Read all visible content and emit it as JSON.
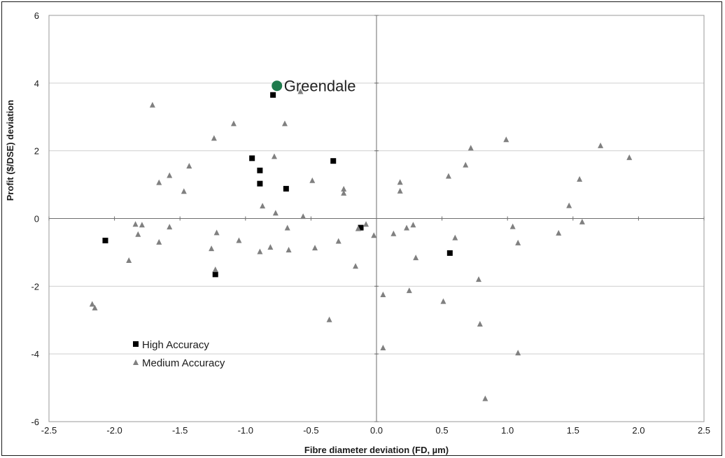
{
  "chart_data": {
    "type": "scatter",
    "title": "",
    "xlabel": "Fibre diameter deviation (FD, µm)",
    "ylabel": "Profit ($/DSE) deviation",
    "xlim": [
      -2.5,
      2.5
    ],
    "ylim": [
      -6,
      6
    ],
    "x_ticks": [
      -2.5,
      -2.0,
      -1.5,
      -1.0,
      -0.5,
      0.0,
      0.5,
      1.0,
      1.5,
      2.0,
      2.5
    ],
    "x_tick_labels": [
      "-2.5",
      "-2.0",
      "-1.5",
      "-1.0",
      "-0.5",
      "0.0",
      "0.5",
      "1.0",
      "1.5",
      "2.0",
      "2.5"
    ],
    "y_ticks": [
      -6,
      -4,
      -2,
      0,
      2,
      4,
      6
    ],
    "y_tick_labels": [
      "-6",
      "-4",
      "-2",
      "0",
      "2",
      "4",
      "6"
    ],
    "grid": "horizontal",
    "legend_position": "bottom-left",
    "series": [
      {
        "name": "High Accuracy",
        "marker": "square",
        "color": "#000000",
        "points": [
          [
            -0.79,
            3.65
          ],
          [
            -0.95,
            1.78
          ],
          [
            -0.89,
            1.42
          ],
          [
            -0.89,
            1.03
          ],
          [
            -0.69,
            0.88
          ],
          [
            -0.33,
            1.7
          ],
          [
            -0.12,
            -0.27
          ],
          [
            -2.07,
            -0.65
          ],
          [
            -1.23,
            -1.65
          ],
          [
            0.56,
            -1.02
          ]
        ]
      },
      {
        "name": "Medium Accuracy",
        "marker": "triangle",
        "color": "#808080",
        "points": [
          [
            -1.71,
            3.35
          ],
          [
            -0.58,
            3.75
          ],
          [
            -1.09,
            2.8
          ],
          [
            -0.7,
            2.8
          ],
          [
            -1.24,
            2.37
          ],
          [
            -0.78,
            1.83
          ],
          [
            -1.43,
            1.55
          ],
          [
            -1.58,
            1.27
          ],
          [
            -1.66,
            1.06
          ],
          [
            -1.47,
            0.8
          ],
          [
            -0.49,
            1.12
          ],
          [
            -0.25,
            0.87
          ],
          [
            -0.25,
            0.75
          ],
          [
            -0.87,
            0.37
          ],
          [
            -0.77,
            0.16
          ],
          [
            -0.56,
            0.06
          ],
          [
            -1.84,
            -0.17
          ],
          [
            -1.79,
            -0.19
          ],
          [
            -1.58,
            -0.25
          ],
          [
            -1.82,
            -0.47
          ],
          [
            -1.22,
            -0.42
          ],
          [
            -1.66,
            -0.7
          ],
          [
            -1.05,
            -0.65
          ],
          [
            -1.26,
            -0.89
          ],
          [
            -0.81,
            -0.85
          ],
          [
            -0.89,
            -0.98
          ],
          [
            -0.68,
            -0.28
          ],
          [
            -0.67,
            -0.93
          ],
          [
            -0.47,
            -0.87
          ],
          [
            -0.29,
            -0.67
          ],
          [
            -0.14,
            -0.3
          ],
          [
            -0.08,
            -0.17
          ],
          [
            -0.02,
            -0.5
          ],
          [
            -1.89,
            -1.24
          ],
          [
            -0.16,
            -1.41
          ],
          [
            -1.23,
            -1.51
          ],
          [
            -2.17,
            -2.53
          ],
          [
            -2.15,
            -2.64
          ],
          [
            -0.36,
            -2.99
          ],
          [
            0.05,
            -2.25
          ],
          [
            0.05,
            -3.82
          ],
          [
            0.13,
            -0.45
          ],
          [
            0.23,
            -0.28
          ],
          [
            0.28,
            -0.19
          ],
          [
            0.3,
            -1.16
          ],
          [
            0.25,
            -2.13
          ],
          [
            0.18,
            1.07
          ],
          [
            0.18,
            0.81
          ],
          [
            0.55,
            1.25
          ],
          [
            0.68,
            1.58
          ],
          [
            0.72,
            2.08
          ],
          [
            0.99,
            2.33
          ],
          [
            0.6,
            -0.57
          ],
          [
            0.51,
            -2.45
          ],
          [
            0.78,
            -1.8
          ],
          [
            0.79,
            -3.12
          ],
          [
            0.83,
            -5.32
          ],
          [
            1.04,
            -0.24
          ],
          [
            1.08,
            -0.72
          ],
          [
            1.08,
            -3.97
          ],
          [
            1.39,
            -0.43
          ],
          [
            1.47,
            0.38
          ],
          [
            1.55,
            1.16
          ],
          [
            1.57,
            -0.1
          ],
          [
            1.71,
            2.15
          ],
          [
            1.93,
            1.8
          ]
        ]
      }
    ],
    "annotations": [
      {
        "text": "Greendale",
        "x": -0.76,
        "y": 3.92,
        "color": "#1e7a4c"
      }
    ]
  }
}
